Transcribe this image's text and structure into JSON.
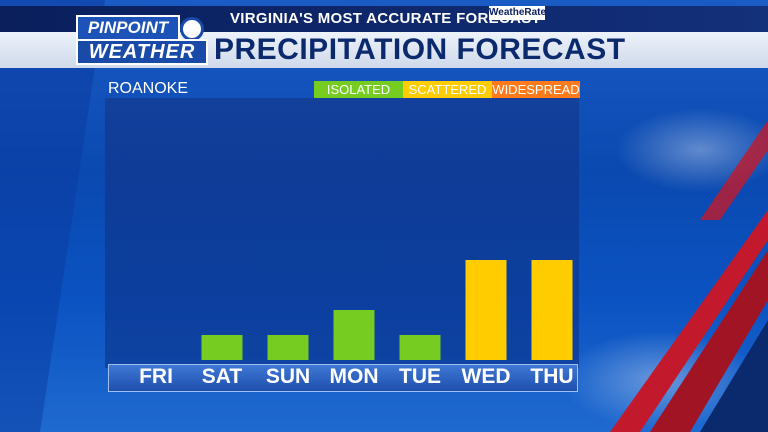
{
  "header": {
    "tagline": "VIRGINIA'S MOST ACCURATE FORECAST",
    "weatherrate_label": "WeatheRate",
    "title": "PRECIPITATION FORECAST",
    "logo_line1": "PINPOINT",
    "logo_line2": "WEATHER"
  },
  "location": "ROANOKE",
  "legend": [
    {
      "label": "ISOLATED",
      "color": "#77cc22"
    },
    {
      "label": "SCATTERED",
      "color": "#ffcc00"
    },
    {
      "label": "WIDESPREAD",
      "color": "#ff7a1a"
    }
  ],
  "chart_data": {
    "type": "bar",
    "categories": [
      "FRI",
      "SAT",
      "SUN",
      "MON",
      "TUE",
      "WED",
      "THU"
    ],
    "values": [
      0,
      1,
      1,
      2,
      1,
      4,
      4
    ],
    "value_coverage": [
      "none",
      "isolated",
      "isolated",
      "isolated",
      "isolated",
      "scattered",
      "scattered"
    ],
    "ylim": [
      0,
      10
    ]
  }
}
